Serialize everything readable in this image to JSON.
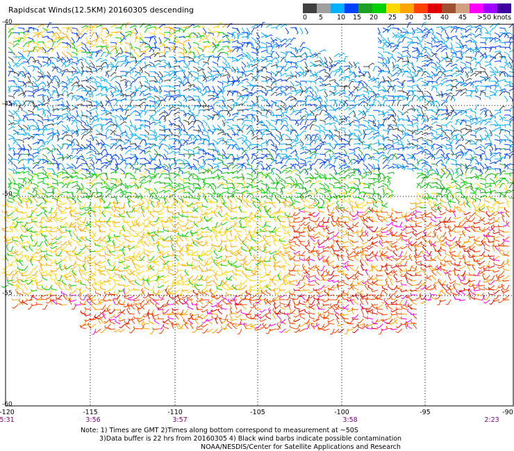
{
  "title": "Rapidscat Winds(12.5KM) 20160305 descending",
  "legend": {
    "colors": [
      "#404040",
      "#a0a0a0",
      "#00b0ff",
      "#0040ff",
      "#20a020",
      "#00d000",
      "#ffd700",
      "#ffa500",
      "#ff4000",
      "#e00000",
      "#a05030",
      "#d0a080",
      "#ff00ff",
      "#a000ff",
      "#4000a0"
    ],
    "labels": [
      "0",
      "5",
      "10",
      "15",
      "20",
      "25",
      "30",
      "35",
      "40",
      "45",
      ">50 knots"
    ]
  },
  "map": {
    "lat_labels": [
      "-40",
      "-45",
      "-50",
      "-55",
      "-60"
    ],
    "lon_labels": [
      "-120",
      "-115",
      "-110",
      "-105",
      "-100",
      "-95",
      "-90"
    ],
    "times": [
      "5:31",
      "3:56",
      "3:57",
      "3:58",
      "2:23"
    ]
  },
  "notes": {
    "line1": "Note: 1) Times are GMT 2)Times along bottom correspond to measurement at ~50S",
    "line2": "3)Data buffer is 22 hrs from 20160305 4) Black wind barbs indicate possible contamination",
    "line3": "NOAA/NESDIS/Center for Satellite Applications and Research"
  }
}
